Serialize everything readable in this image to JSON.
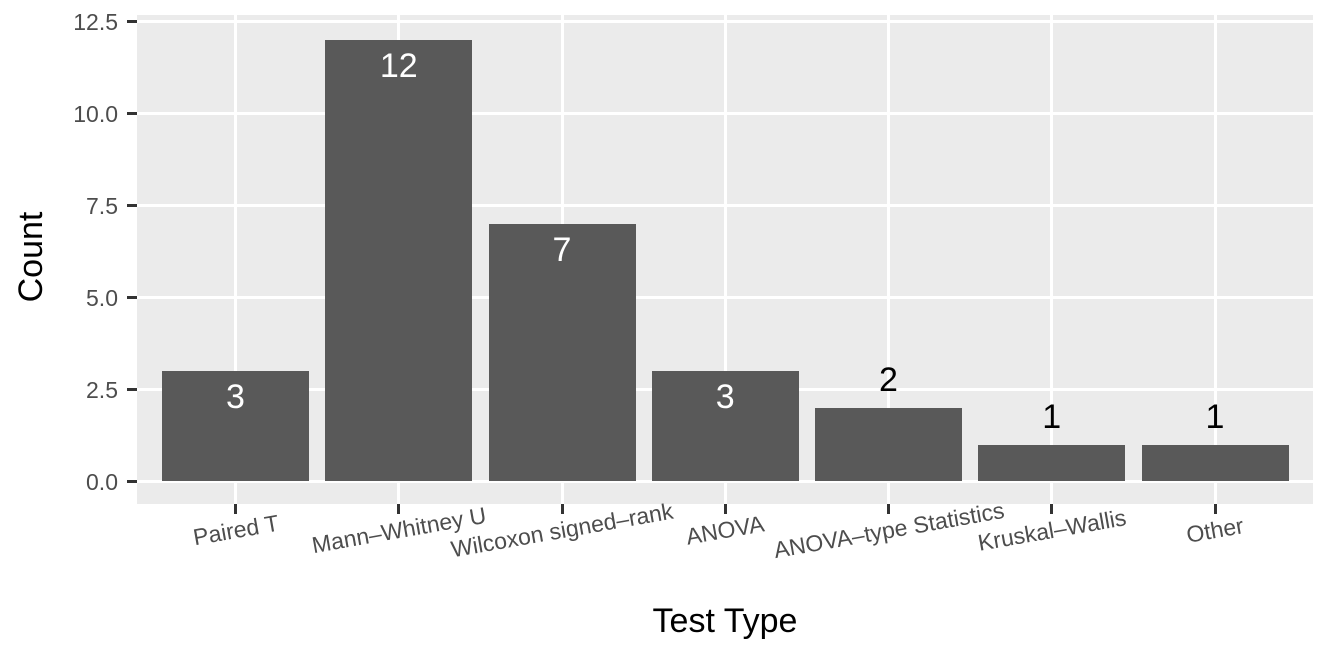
{
  "chart_data": {
    "type": "bar",
    "title": "",
    "xlabel": "Test Type",
    "ylabel": "Count",
    "categories": [
      "Paired T",
      "Mann–Whitney U",
      "Wilcoxon signed–rank",
      "ANOVA",
      "ANOVA–type Statistics",
      "Kruskal–Wallis",
      "Other"
    ],
    "values": [
      3,
      12,
      7,
      3,
      2,
      1,
      1
    ],
    "bar_value_labels": [
      "3",
      "12",
      "7",
      "3",
      "2",
      "1",
      "1"
    ],
    "bar_label_positions": [
      "inside",
      "inside",
      "inside",
      "inside",
      "above",
      "above",
      "above"
    ],
    "ytick_values": [
      0,
      2.5,
      5,
      7.5,
      10,
      12.5
    ],
    "ytick_labels": [
      "0.0",
      "2.5",
      "5.0",
      "7.5",
      "10.0",
      "12.5"
    ],
    "ylim": [
      0,
      12.6
    ],
    "x_tick_label_angle_deg": -10,
    "grid": {
      "major": true,
      "minor": false
    },
    "legend_position": "none",
    "colors": {
      "bar_fill": "#595959",
      "panel_background": "#EBEBEB",
      "gridline": "#FFFFFF",
      "tick_mark": "#333333",
      "tick_label_text": "#4D4D4D",
      "axis_title_text": "#000000",
      "bar_label_inside": "#FFFFFF",
      "bar_label_above": "#000000"
    }
  }
}
